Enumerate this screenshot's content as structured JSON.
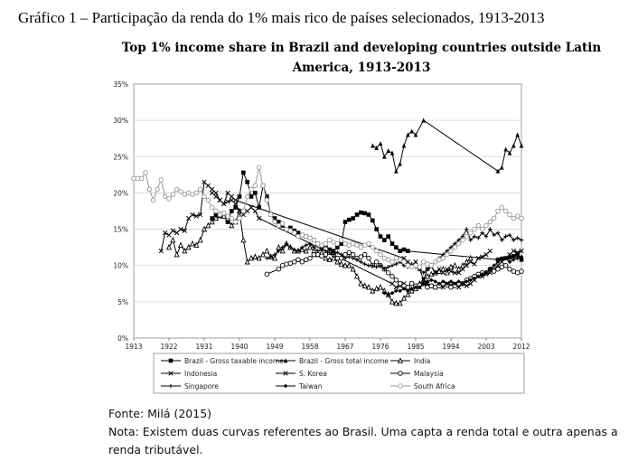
{
  "document": {
    "figure_caption": "Gráfico 1 – Participação da renda do 1% mais rico de países selecionados, 1913-2013",
    "source_label": "Fonte: Milá (2015)",
    "note_line1": "Nota: Existem duas curvas referentes ao Brasil. Uma capta a renda total e outra apenas a",
    "note_line2": "renda tributável."
  },
  "chart_data": {
    "type": "line",
    "title_line1": "Top 1% income share in Brazil and developing countries outside Latin",
    "title_line2": "America, 1913-2013",
    "xlabel": "",
    "ylabel": "",
    "xlim": [
      1913,
      2012
    ],
    "ylim": [
      0,
      35
    ],
    "x_ticks": [
      1913,
      1922,
      1931,
      1940,
      1949,
      1958,
      1967,
      1976,
      1985,
      1994,
      2003,
      2012
    ],
    "y_ticks": [
      0,
      5,
      10,
      15,
      20,
      25,
      30,
      35
    ],
    "y_tick_labels": [
      "0%",
      "5%",
      "10%",
      "15%",
      "20%",
      "25%",
      "30%",
      "35%"
    ],
    "grid": "horizontal",
    "legend_position": "bottom",
    "series": [
      {
        "name": "Brazil - Gross taxable income",
        "color": "#000000",
        "marker": "square",
        "x": [
          1933,
          1934,
          1935,
          1936,
          1937,
          1938,
          1939,
          1940,
          1941,
          1942,
          1943,
          1944,
          1945,
          1946,
          1947,
          1948,
          1949,
          1950,
          1951,
          1952,
          1953,
          1954,
          1955,
          1956,
          1957,
          1958,
          1959,
          1960,
          1961,
          1962,
          1963,
          1964,
          1965,
          1966,
          1967,
          1968,
          1969,
          1970,
          1971,
          1972,
          1973,
          1974,
          1975,
          1976,
          1977,
          1978,
          1979,
          1980,
          1981,
          1982,
          1983,
          2006,
          2007,
          2008,
          2009,
          2010,
          2011,
          2012
        ],
        "y": [
          16.5,
          17.0,
          16.8,
          17.2,
          16.0,
          17.5,
          18.0,
          19.5,
          22.8,
          21.5,
          19.5,
          20.0,
          18.0,
          21.0,
          19.5,
          17.0,
          16.5,
          16.0,
          15.5,
          15.0,
          15.2,
          14.8,
          14.5,
          14.2,
          14.0,
          13.8,
          13.5,
          13.0,
          12.5,
          12.8,
          12.2,
          12.0,
          12.5,
          13.0,
          16.0,
          16.3,
          16.5,
          17.0,
          17.3,
          17.2,
          17.0,
          16.2,
          15.0,
          14.0,
          13.5,
          14.0,
          13.0,
          12.5,
          12.0,
          12.2,
          12.0,
          10.8,
          10.9,
          11.0,
          11.1,
          11.3,
          11.5,
          10.8
        ]
      },
      {
        "name": "Brazil - Gross total income",
        "color": "#000000",
        "marker": "triangle",
        "x": [
          1974,
          1975,
          1976,
          1977,
          1978,
          1979,
          1980,
          1981,
          1982,
          1983,
          1984,
          1985,
          1987,
          2006,
          2007,
          2008,
          2009,
          2010,
          2011,
          2012
        ],
        "y": [
          26.5,
          26.2,
          26.8,
          25.0,
          25.8,
          25.5,
          23.0,
          24.0,
          26.5,
          28.0,
          28.5,
          28.0,
          30.0,
          23.0,
          23.5,
          26.0,
          25.5,
          26.5,
          28.0,
          26.5
        ]
      },
      {
        "name": "India",
        "color": "#000000",
        "marker": "triangle-open",
        "x": [
          1922,
          1923,
          1924,
          1925,
          1926,
          1927,
          1928,
          1929,
          1930,
          1931,
          1932,
          1933,
          1934,
          1935,
          1936,
          1937,
          1938,
          1939,
          1940,
          1941,
          1942,
          1943,
          1944,
          1945,
          1946,
          1947,
          1948,
          1949,
          1950,
          1951,
          1952,
          1953,
          1954,
          1955,
          1956,
          1957,
          1958,
          1959,
          1960,
          1961,
          1962,
          1963,
          1964,
          1965,
          1966,
          1967,
          1968,
          1969,
          1970,
          1971,
          1972,
          1973,
          1974,
          1975,
          1976,
          1977,
          1978,
          1979,
          1980,
          1981,
          1982,
          1983,
          1984,
          1985,
          1986,
          1987,
          1988,
          1989,
          1990,
          1991,
          1992,
          1993,
          1994,
          1995,
          1996,
          1997,
          1998,
          1999
        ],
        "y": [
          12.5,
          13.5,
          11.5,
          12.8,
          12.0,
          12.5,
          13.0,
          12.8,
          13.5,
          15.0,
          15.5,
          16.0,
          16.5,
          17.0,
          16.8,
          16.5,
          15.5,
          16.0,
          17.5,
          13.5,
          10.5,
          11.0,
          11.2,
          11.0,
          11.5,
          12.0,
          11.2,
          11.0,
          12.5,
          12.0,
          13.0,
          12.5,
          12.0,
          12.0,
          12.2,
          12.0,
          12.5,
          12.0,
          11.5,
          11.8,
          11.0,
          10.8,
          11.0,
          10.5,
          10.2,
          10.0,
          10.0,
          9.5,
          8.5,
          7.5,
          7.2,
          7.0,
          6.5,
          6.8,
          7.0,
          6.5,
          6.0,
          5.0,
          4.8,
          4.8,
          5.5,
          6.0,
          6.5,
          6.8,
          7.5,
          8.0,
          8.5,
          8.8,
          9.0,
          9.2,
          9.5,
          9.0,
          9.8,
          10.0,
          9.5,
          10.0,
          10.5,
          11.0
        ]
      },
      {
        "name": "Indonesia",
        "color": "#000000",
        "marker": "x",
        "x": [
          1920,
          1921,
          1922,
          1923,
          1924,
          1925,
          1926,
          1927,
          1928,
          1929,
          1930,
          1931,
          1932,
          1933,
          1934,
          1935,
          1936,
          1937,
          1938,
          1939,
          1982,
          1983,
          1984,
          1985,
          1986,
          1987,
          1988,
          1989,
          1990,
          1991,
          1992,
          1993,
          1994,
          1995,
          1996,
          1997,
          1998,
          1999,
          2000,
          2001,
          2002,
          2003,
          2004
        ],
        "y": [
          12.0,
          14.5,
          14.2,
          14.8,
          14.5,
          15.0,
          14.8,
          16.5,
          17.0,
          16.8,
          17.0,
          21.5,
          21.0,
          20.5,
          20.0,
          19.0,
          18.5,
          20.0,
          19.5,
          19.0,
          11.0,
          10.5,
          10.0,
          10.5,
          9.5,
          8.0,
          9.5,
          9.8,
          9.0,
          9.5,
          9.0,
          9.5,
          9.2,
          9.0,
          9.0,
          9.5,
          10.0,
          10.5,
          10.2,
          11.0,
          11.2,
          11.5,
          12.0
        ]
      },
      {
        "name": "S. Korea",
        "color": "#000000",
        "marker": "x",
        "x": [
          1933,
          1934,
          1935,
          1936,
          1937,
          1938,
          1939,
          1940,
          1941,
          1942,
          1943,
          1944,
          1945,
          1979,
          1980,
          1981,
          1982,
          1983,
          1984,
          1985,
          1986,
          1987,
          1988,
          1989,
          1990,
          1991,
          1992,
          1993,
          1994,
          1995,
          1996,
          1997,
          1998,
          1999,
          2000,
          2001,
          2002,
          2003,
          2004,
          2005,
          2006,
          2007,
          2008,
          2009,
          2010,
          2011,
          2012
        ],
        "y": [
          20.0,
          19.5,
          19.0,
          18.5,
          18.8,
          19.0,
          18.5,
          17.5,
          17.0,
          17.5,
          18.0,
          17.5,
          16.5,
          7.5,
          7.0,
          7.2,
          7.5,
          7.0,
          7.5,
          7.2,
          7.0,
          7.5,
          7.5,
          7.2,
          7.0,
          7.2,
          7.0,
          7.5,
          7.3,
          7.5,
          7.0,
          7.5,
          7.2,
          7.5,
          8.0,
          8.5,
          8.5,
          8.8,
          9.0,
          9.5,
          10.0,
          10.5,
          11.0,
          11.5,
          12.0,
          11.8,
          12.0
        ]
      },
      {
        "name": "Malaysia",
        "color": "#000000",
        "marker": "circle-open",
        "x": [
          1947,
          1950,
          1951,
          1952,
          1953,
          1954,
          1955,
          1956,
          1957,
          1958,
          1959,
          1960,
          1961,
          1962,
          1963,
          1964,
          1965,
          1966,
          1967,
          1968,
          1969,
          1970,
          1971,
          1972,
          1973,
          1974,
          1975,
          1976,
          1977,
          1978,
          1979,
          1980,
          1981,
          1982,
          1983,
          1984,
          1985,
          1986,
          1987,
          1988,
          1989,
          1990,
          1991,
          1992,
          1993,
          1994,
          1995,
          1996,
          1997,
          1998,
          1999,
          2000,
          2001,
          2002,
          2003,
          2004,
          2005,
          2006,
          2007,
          2008,
          2009,
          2010,
          2011,
          2012
        ],
        "y": [
          8.8,
          9.5,
          10.0,
          10.2,
          10.3,
          10.5,
          10.8,
          10.5,
          10.8,
          11.0,
          11.5,
          11.5,
          11.3,
          11.5,
          11.8,
          11.5,
          11.0,
          11.0,
          11.5,
          11.8,
          11.5,
          11.0,
          11.2,
          11.5,
          11.0,
          10.0,
          10.5,
          10.0,
          9.5,
          9.0,
          8.5,
          8.0,
          7.5,
          7.2,
          7.0,
          7.5,
          7.2,
          7.3,
          7.5,
          7.0,
          7.2,
          7.0,
          7.2,
          7.5,
          7.3,
          7.0,
          7.2,
          7.5,
          7.5,
          8.0,
          8.2,
          8.5,
          8.8,
          9.0,
          9.0,
          9.5,
          9.2,
          9.5,
          9.8,
          10.0,
          9.5,
          9.2,
          9.0,
          9.2
        ]
      },
      {
        "name": "Singapore",
        "color": "#000000",
        "marker": "plus",
        "x": [
          1947,
          1948,
          1949,
          1950,
          1951,
          1952,
          1953,
          1954,
          1955,
          1956,
          1957,
          1958,
          1959,
          1960,
          1961,
          1962,
          1963,
          1964,
          1965,
          1966,
          1967,
          1968,
          1969,
          1970,
          1971,
          1972,
          1973,
          1974,
          1975,
          1976,
          1977,
          1978,
          1979,
          1980,
          1981,
          1982,
          1983,
          1984,
          1985,
          1986,
          1987,
          1988,
          1989,
          1990,
          1991,
          1992,
          1993,
          1994,
          1995,
          1996,
          1997,
          1998,
          1999,
          2000,
          2001,
          2002,
          2003,
          2004,
          2005,
          2006,
          2007,
          2008,
          2009,
          2010,
          2011,
          2012
        ],
        "y": [
          11.0,
          11.2,
          11.5,
          12.0,
          12.5,
          13.0,
          12.5,
          12.2,
          12.0,
          12.5,
          12.8,
          13.0,
          12.5,
          12.0,
          12.2,
          12.0,
          11.8,
          11.5,
          11.8,
          11.5,
          11.0,
          11.2,
          11.0,
          10.8,
          10.5,
          10.2,
          10.0,
          10.0,
          9.8,
          10.0,
          9.5,
          9.8,
          10.0,
          10.2,
          10.5,
          10.0,
          9.8,
          10.2,
          9.8,
          9.5,
          9.0,
          9.5,
          10.0,
          10.5,
          11.0,
          11.5,
          12.0,
          12.5,
          13.0,
          13.5,
          14.0,
          15.0,
          13.5,
          14.0,
          13.8,
          14.5,
          14.0,
          15.0,
          14.2,
          14.5,
          13.5,
          14.0,
          14.2,
          13.5,
          13.8,
          13.5
        ]
      },
      {
        "name": "Taiwan",
        "color": "#000000",
        "marker": "diamond",
        "x": [
          1977,
          1978,
          1979,
          1980,
          1981,
          1982,
          1983,
          1984,
          1985,
          1986,
          1987,
          1988,
          1989,
          1990,
          1991,
          1992,
          1993,
          1994,
          1995,
          1996,
          1997,
          1998,
          1999,
          2000,
          2001,
          2002,
          2003,
          2004,
          2005,
          2006,
          2007,
          2008,
          2009,
          2010,
          2011,
          2012
        ],
        "y": [
          6.2,
          6.0,
          6.2,
          6.5,
          6.5,
          6.8,
          6.5,
          6.8,
          7.0,
          7.0,
          7.5,
          7.8,
          8.0,
          7.8,
          7.5,
          7.8,
          7.5,
          7.8,
          7.5,
          7.8,
          7.5,
          7.8,
          8.0,
          8.2,
          8.5,
          8.8,
          9.0,
          9.5,
          10.0,
          10.5,
          11.0,
          11.0,
          10.5,
          10.8,
          11.0,
          11.2
        ]
      },
      {
        "name": "South Africa",
        "color": "#999999",
        "marker": "circle-open",
        "x": [
          1913,
          1914,
          1915,
          1916,
          1917,
          1918,
          1919,
          1920,
          1921,
          1922,
          1923,
          1924,
          1925,
          1926,
          1927,
          1928,
          1929,
          1930,
          1931,
          1932,
          1933,
          1934,
          1935,
          1936,
          1937,
          1938,
          1939,
          1940,
          1941,
          1942,
          1943,
          1944,
          1945,
          1946,
          1947,
          1948,
          1949,
          1950,
          1951,
          1952,
          1953,
          1954,
          1955,
          1956,
          1957,
          1958,
          1959,
          1960,
          1961,
          1962,
          1963,
          1964,
          1965,
          1966,
          1967,
          1968,
          1969,
          1970,
          1971,
          1972,
          1973,
          1974,
          1975,
          1976,
          1977,
          1978,
          1979,
          1980,
          1981,
          1982,
          1983,
          1984,
          1985,
          1986,
          1987,
          1988,
          1989,
          1990,
          1991,
          1992,
          1993,
          1994,
          1995,
          1996,
          1997,
          1998,
          1999,
          2000,
          2001,
          2002,
          2003,
          2004,
          2005,
          2006,
          2007,
          2008,
          2009,
          2010,
          2011,
          2012
        ],
        "y": [
          22.0,
          22.0,
          22.0,
          22.8,
          20.5,
          19.0,
          20.5,
          21.8,
          19.5,
          19.2,
          19.8,
          20.5,
          20.2,
          19.8,
          20.0,
          19.8,
          20.0,
          20.5,
          19.5,
          19.0,
          18.0,
          17.5,
          17.0,
          17.2,
          16.8,
          16.5,
          16.0,
          16.5,
          17.5,
          19.5,
          20.5,
          21.0,
          23.5,
          21.0,
          19.0,
          17.0,
          16.0,
          15.5,
          15.8,
          15.0,
          14.8,
          14.5,
          14.0,
          14.2,
          14.0,
          13.8,
          13.5,
          13.0,
          12.8,
          13.0,
          13.5,
          13.2,
          13.0,
          13.5,
          13.0,
          12.8,
          13.0,
          12.8,
          12.5,
          12.8,
          13.0,
          12.5,
          12.0,
          11.5,
          11.0,
          10.8,
          10.5,
          11.0,
          10.8,
          10.5,
          10.0,
          9.8,
          10.0,
          9.8,
          10.5,
          10.2,
          10.0,
          10.5,
          10.8,
          11.0,
          11.5,
          12.0,
          12.5,
          13.0,
          13.5,
          14.0,
          14.5,
          15.0,
          15.5,
          15.0,
          15.5,
          16.0,
          16.5,
          17.5,
          18.0,
          17.5,
          17.0,
          16.5,
          16.8,
          16.5
        ]
      }
    ],
    "legend": [
      "Brazil - Gross taxable income",
      "Brazil - Gross total income",
      "India",
      "Indonesia",
      "S. Korea",
      "Malaysia",
      "Singapore",
      "Taiwan",
      "South Africa"
    ]
  }
}
